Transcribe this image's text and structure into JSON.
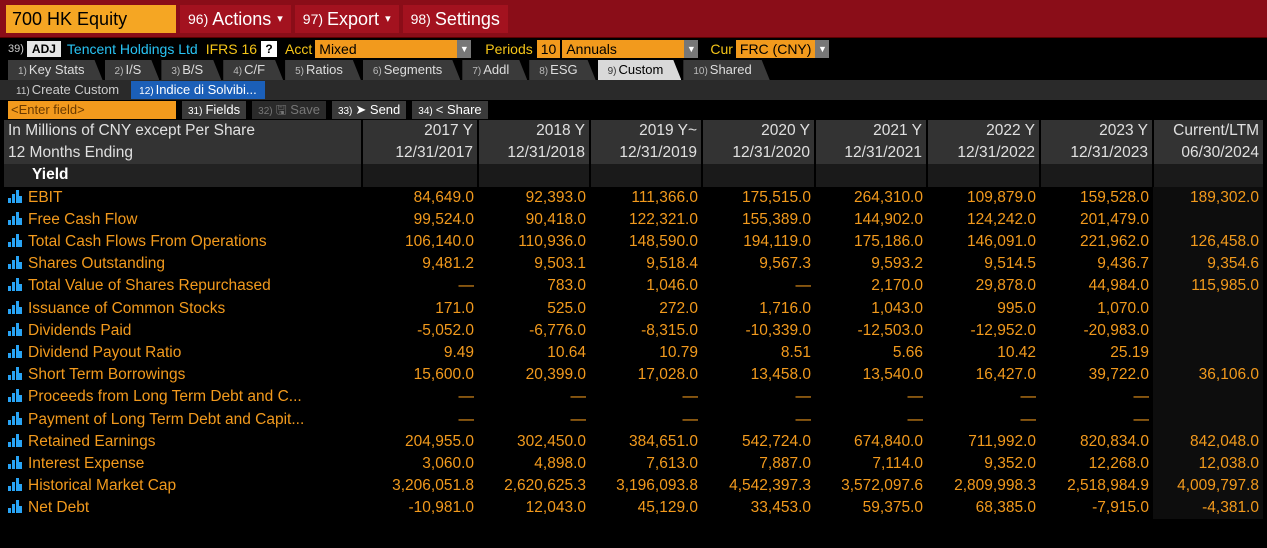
{
  "titlebar": {
    "ticker": "700 HK Equity",
    "actions": {
      "num": "96)",
      "label": "Actions"
    },
    "export": {
      "num": "97)",
      "label": "Export"
    },
    "settings": {
      "num": "98)",
      "label": "Settings"
    }
  },
  "header": {
    "adj_num": "39)",
    "adj_label": "ADJ",
    "company": "Tencent Holdings Ltd",
    "standard": "IFRS 16",
    "help": "?",
    "acct_label": "Acct",
    "acct_value": "Mixed",
    "periods_label": "Periods",
    "periods_count": "10",
    "periods_value": "Annuals",
    "cur_label": "Cur",
    "cur_value": "FRC (CNY)"
  },
  "tabs": [
    {
      "num": "1)",
      "label": "Key Stats"
    },
    {
      "num": "2)",
      "label": "I/S"
    },
    {
      "num": "3)",
      "label": "B/S"
    },
    {
      "num": "4)",
      "label": "C/F"
    },
    {
      "num": "5)",
      "label": "Ratios"
    },
    {
      "num": "6)",
      "label": "Segments"
    },
    {
      "num": "7)",
      "label": "Addl"
    },
    {
      "num": "8)",
      "label": "ESG"
    },
    {
      "num": "9)",
      "label": "Custom"
    },
    {
      "num": "10)",
      "label": "Shared"
    }
  ],
  "subtabs": [
    {
      "num": "11)",
      "label": "Create Custom"
    },
    {
      "num": "12)",
      "label": "Indice di Solvibi..."
    }
  ],
  "toolbar": {
    "field_placeholder": "<Enter field>",
    "fields": {
      "num": "31)",
      "label": "Fields"
    },
    "save": {
      "num": "32)",
      "label": "Save"
    },
    "send": {
      "num": "33)",
      "label": "Send"
    },
    "share": {
      "num": "34)",
      "label": "Share"
    }
  },
  "table": {
    "header1": [
      "In Millions of CNY except Per Share",
      "2017 Y",
      "2018 Y",
      "2019 Y~",
      "2020 Y",
      "2021 Y",
      "2022 Y",
      "2023 Y",
      "Current/LTM"
    ],
    "header2": [
      "12 Months Ending",
      "12/31/2017",
      "12/31/2018",
      "12/31/2019",
      "12/31/2020",
      "12/31/2021",
      "12/31/2022",
      "12/31/2023",
      "06/30/2024"
    ],
    "section": "Yield",
    "rows": [
      {
        "label": "EBIT",
        "values": [
          "84,649.0",
          "92,393.0",
          "111,366.0",
          "175,515.0",
          "264,310.0",
          "109,879.0",
          "159,528.0",
          "189,302.0"
        ]
      },
      {
        "label": "Free Cash Flow",
        "values": [
          "99,524.0",
          "90,418.0",
          "122,321.0",
          "155,389.0",
          "144,902.0",
          "124,242.0",
          "201,479.0",
          ""
        ]
      },
      {
        "label": "Total Cash Flows From Operations",
        "values": [
          "106,140.0",
          "110,936.0",
          "148,590.0",
          "194,119.0",
          "175,186.0",
          "146,091.0",
          "221,962.0",
          "126,458.0"
        ]
      },
      {
        "label": "Shares Outstanding",
        "values": [
          "9,481.2",
          "9,503.1",
          "9,518.4",
          "9,567.3",
          "9,593.2",
          "9,514.5",
          "9,436.7",
          "9,354.6"
        ]
      },
      {
        "label": "Total Value of Shares Repurchased",
        "values": [
          "—",
          "783.0",
          "1,046.0",
          "—",
          "2,170.0",
          "29,878.0",
          "44,984.0",
          "115,985.0"
        ]
      },
      {
        "label": "Issuance of Common Stocks",
        "values": [
          "171.0",
          "525.0",
          "272.0",
          "1,716.0",
          "1,043.0",
          "995.0",
          "1,070.0",
          ""
        ]
      },
      {
        "label": "Dividends Paid",
        "values": [
          "-5,052.0",
          "-6,776.0",
          "-8,315.0",
          "-10,339.0",
          "-12,503.0",
          "-12,952.0",
          "-20,983.0",
          ""
        ]
      },
      {
        "label": "Dividend Payout Ratio",
        "values": [
          "9.49",
          "10.64",
          "10.79",
          "8.51",
          "5.66",
          "10.42",
          "25.19",
          ""
        ]
      },
      {
        "label": "Short Term Borrowings",
        "values": [
          "15,600.0",
          "20,399.0",
          "17,028.0",
          "13,458.0",
          "13,540.0",
          "16,427.0",
          "39,722.0",
          "36,106.0"
        ]
      },
      {
        "label": "Proceeds from Long Term Debt and C...",
        "values": [
          "—",
          "—",
          "—",
          "—",
          "—",
          "—",
          "—",
          ""
        ]
      },
      {
        "label": "Payment of Long Term Debt and Capit...",
        "values": [
          "—",
          "—",
          "—",
          "—",
          "—",
          "—",
          "—",
          ""
        ]
      },
      {
        "label": "Retained Earnings",
        "values": [
          "204,955.0",
          "302,450.0",
          "384,651.0",
          "542,724.0",
          "674,840.0",
          "711,992.0",
          "820,834.0",
          "842,048.0"
        ]
      },
      {
        "label": "Interest Expense",
        "values": [
          "3,060.0",
          "4,898.0",
          "7,613.0",
          "7,887.0",
          "7,114.0",
          "9,352.0",
          "12,268.0",
          "12,038.0"
        ]
      },
      {
        "label": "Historical Market Cap",
        "values": [
          "3,206,051.8",
          "2,620,625.3",
          "3,196,093.8",
          "4,542,397.3",
          "3,572,097.6",
          "2,809,998.3",
          "2,518,984.9",
          "4,009,797.8"
        ]
      },
      {
        "label": "Net Debt",
        "values": [
          "-10,981.0",
          "12,043.0",
          "45,129.0",
          "33,453.0",
          "59,375.0",
          "68,385.0",
          "-7,915.0",
          "-4,381.0"
        ]
      }
    ]
  }
}
